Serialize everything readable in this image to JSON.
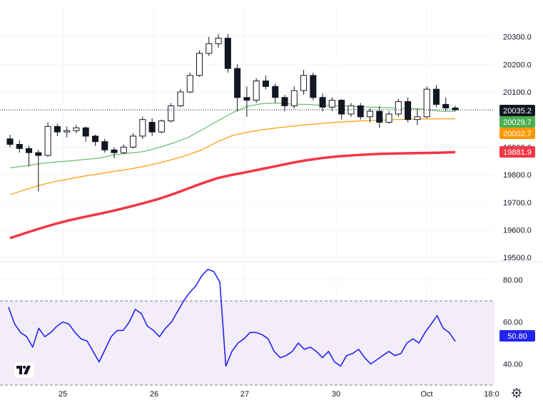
{
  "colors": {
    "up": "#ffffff",
    "down": "#131722",
    "wick": "#131722",
    "ma_short": "#4caf50",
    "ma_mid": "#ff9800",
    "ma_long": "#f23645",
    "rsi": "#2424f0",
    "rsi_band": "#ede7f6",
    "grid": "#f0f3fa",
    "badge_price": "#131722",
    "badge_rsi": "#2424f0"
  },
  "chart_data": [
    {
      "type": "candlestick",
      "panel": "price",
      "y_ticks": [
        20300.0,
        20200.0,
        20100.0,
        19900.0,
        19800.0,
        19700.0,
        19600.0,
        19500.0
      ],
      "ylim": [
        19490,
        20330
      ],
      "x_ticks": [
        "25",
        "26",
        "27",
        "30",
        "Oct",
        "18:0"
      ],
      "last_price": 20035.2,
      "series": [
        {
          "name": "",
          "role": "ma_short",
          "last": 20029.7,
          "values": [
            19825,
            19832,
            19840,
            19846,
            19850,
            19855,
            19860,
            19872,
            19878,
            19884,
            19898,
            19915,
            19935,
            19965,
            19995,
            20025,
            20048,
            20058,
            20060,
            20056,
            20055,
            20052,
            20050,
            20048,
            20046,
            20044,
            20042,
            20040,
            20038,
            20030,
            20029.7
          ]
        },
        {
          "name": "",
          "role": "ma_mid",
          "last": 20002.7,
          "values": [
            19728,
            19745,
            19762,
            19775,
            19785,
            19795,
            19803,
            19812,
            19820,
            19830,
            19842,
            19856,
            19872,
            19892,
            19920,
            19942,
            19954,
            19963,
            19970,
            19976,
            19981,
            19986,
            19990,
            19993,
            19996,
            19998,
            20000,
            20001,
            20002,
            20002.5,
            20002.7
          ]
        },
        {
          "name": "",
          "role": "ma_long",
          "last": 19881.9,
          "values": [
            19570,
            19588,
            19605,
            19621,
            19635,
            19647,
            19658,
            19670,
            19683,
            19697,
            19712,
            19730,
            19750,
            19770,
            19788,
            19800,
            19810,
            19821,
            19832,
            19843,
            19853,
            19860,
            19866,
            19870,
            19873,
            19876,
            19877,
            19878,
            19879,
            19880,
            19881.9
          ]
        }
      ],
      "candles": [
        [
          19930,
          19945,
          19900,
          19910
        ],
        [
          19910,
          19925,
          19880,
          19895
        ],
        [
          19895,
          19905,
          19830,
          19880
        ],
        [
          19880,
          19890,
          19740,
          19870
        ],
        [
          19870,
          19990,
          19865,
          19975
        ],
        [
          19975,
          19985,
          19940,
          19955
        ],
        [
          19955,
          19975,
          19935,
          19960
        ],
        [
          19960,
          19980,
          19950,
          19970
        ],
        [
          19970,
          19975,
          19920,
          19940
        ],
        [
          19940,
          19945,
          19905,
          19920
        ],
        [
          19920,
          19930,
          19880,
          19890
        ],
        [
          19890,
          19900,
          19860,
          19880
        ],
        [
          19880,
          19910,
          19875,
          19900
        ],
        [
          19900,
          19950,
          19895,
          19940
        ],
        [
          19940,
          20010,
          19930,
          20000
        ],
        [
          19990,
          20005,
          19940,
          19955
        ],
        [
          19955,
          20000,
          19950,
          19995
        ],
        [
          19995,
          20060,
          19990,
          20050
        ],
        [
          20050,
          20110,
          20045,
          20100
        ],
        [
          20100,
          20170,
          20095,
          20160
        ],
        [
          20160,
          20250,
          20155,
          20240
        ],
        [
          20240,
          20300,
          20230,
          20275
        ],
        [
          20275,
          20310,
          20260,
          20295
        ],
        [
          20295,
          20310,
          20170,
          20185
        ],
        [
          20185,
          20200,
          20030,
          20080
        ],
        [
          20080,
          20120,
          20010,
          20070
        ],
        [
          20070,
          20150,
          20060,
          20140
        ],
        [
          20140,
          20160,
          20110,
          20120
        ],
        [
          20120,
          20130,
          20060,
          20080
        ],
        [
          20080,
          20090,
          20030,
          20050
        ],
        [
          20050,
          20120,
          20040,
          20105
        ],
        [
          20105,
          20180,
          20090,
          20160
        ],
        [
          20160,
          20170,
          20070,
          20080
        ],
        [
          20080,
          20095,
          20030,
          20045
        ],
        [
          20045,
          20080,
          20030,
          20070
        ],
        [
          20070,
          20075,
          20000,
          20020
        ],
        [
          20020,
          20060,
          20010,
          20050
        ],
        [
          20050,
          20060,
          20000,
          20010
        ],
        [
          20010,
          20040,
          19990,
          20030
        ],
        [
          20030,
          20050,
          19970,
          19990
        ],
        [
          19990,
          20030,
          19985,
          20020
        ],
        [
          20020,
          20075,
          20010,
          20065
        ],
        [
          20065,
          20080,
          19990,
          20000
        ],
        [
          20000,
          20040,
          19980,
          20010
        ],
        [
          20010,
          20120,
          20005,
          20110
        ],
        [
          20110,
          20125,
          20045,
          20055
        ],
        [
          20055,
          20080,
          20030,
          20042
        ],
        [
          20042,
          20050,
          20030,
          20035.2
        ]
      ]
    },
    {
      "type": "line",
      "panel": "rsi",
      "name": "",
      "y_ticks": [
        80.0,
        60.0,
        40.0
      ],
      "ylim": [
        30,
        87
      ],
      "band": [
        70,
        30
      ],
      "last": 50.8,
      "values": [
        67,
        59,
        55,
        53,
        48,
        57,
        53,
        55,
        58,
        60,
        59,
        55,
        52,
        51,
        46,
        41,
        47,
        53,
        56,
        56,
        60,
        66,
        64,
        58,
        56,
        53,
        57,
        60,
        65,
        70,
        74,
        77,
        82,
        85,
        84,
        79,
        39,
        46,
        50,
        52,
        55,
        55,
        54,
        52,
        46,
        43,
        44,
        46,
        50,
        47,
        48,
        46,
        43,
        46,
        41,
        39,
        44,
        45,
        47,
        43,
        40,
        42,
        44,
        46,
        44,
        45,
        50,
        52,
        50,
        55,
        59,
        63,
        57,
        55,
        50.8
      ]
    }
  ]
}
